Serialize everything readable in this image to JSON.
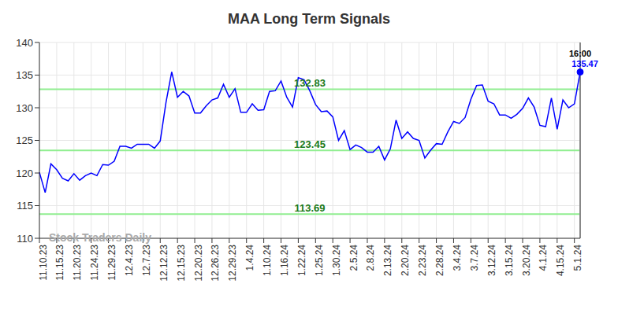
{
  "chart_data": {
    "type": "line",
    "title": "MAA Long Term Signals",
    "watermark": "Stock Traders Daily",
    "time_label": "16:00",
    "categories": [
      "11.10.23",
      null,
      null,
      "11.15.23",
      null,
      null,
      "11.20.23",
      null,
      null,
      "11.24.23",
      null,
      null,
      "11.29.23",
      null,
      null,
      "12.4.23",
      null,
      null,
      "12.7.23",
      null,
      null,
      "12.12.23",
      null,
      null,
      "12.15.23",
      null,
      null,
      "12.20.23",
      null,
      null,
      "12.26.23",
      null,
      null,
      "12.29.23",
      null,
      null,
      "1.4.24",
      null,
      null,
      "1.10.24",
      null,
      null,
      "1.16.24",
      null,
      null,
      "1.22.24",
      null,
      null,
      "1.25.24",
      null,
      null,
      "1.30.24",
      null,
      null,
      "2.5.24",
      null,
      null,
      "2.8.24",
      null,
      null,
      "2.13.24",
      null,
      null,
      "2.20.24",
      null,
      null,
      "2.23.24",
      null,
      null,
      "2.28.24",
      null,
      null,
      "3.4.24",
      null,
      null,
      "3.7.24",
      null,
      null,
      "3.12.24",
      null,
      null,
      "3.15.24",
      null,
      null,
      "3.20.24",
      null,
      null,
      "4.1.24",
      null,
      null,
      "4.15.24",
      null,
      null,
      "5.1.24",
      null
    ],
    "values": [
      120.1,
      117,
      121.4,
      120.5,
      119.2,
      118.8,
      119.9,
      118.9,
      119.6,
      120,
      119.6,
      121.3,
      121.2,
      121.8,
      124.1,
      124.1,
      123.8,
      124.4,
      124.4,
      124.4,
      123.8,
      124.9,
      130.8,
      135.5,
      131.6,
      132.5,
      131.8,
      129.2,
      129.2,
      130.3,
      131.2,
      131.5,
      133.6,
      131.6,
      132.9,
      129.3,
      129.3,
      130.6,
      129.6,
      129.7,
      132.5,
      132.6,
      134.1,
      131.6,
      130.1,
      134.6,
      134.3,
      132.6,
      130.5,
      129.4,
      129.5,
      128.6,
      125,
      126.5,
      123.6,
      124.3,
      123.9,
      123.2,
      123.2,
      124.1,
      122,
      123.7,
      128.1,
      125.3,
      126.3,
      125.3,
      125,
      122.3,
      123.5,
      124.5,
      124.4,
      126.3,
      127.9,
      127.6,
      128.5,
      131.3,
      133.4,
      133.5,
      131,
      130.6,
      128.9,
      128.9,
      128.4,
      129,
      129.9,
      131.5,
      130.1,
      127.3,
      127.1,
      131.5,
      126.7,
      131.2,
      130,
      130.6,
      135.47
    ],
    "color": "#0000ff",
    "reference_lines": [
      132.83,
      123.45,
      113.69
    ],
    "ylim": [
      110,
      140
    ],
    "yticks": [
      110,
      115,
      120,
      125,
      130,
      135,
      140
    ],
    "grid": true
  }
}
